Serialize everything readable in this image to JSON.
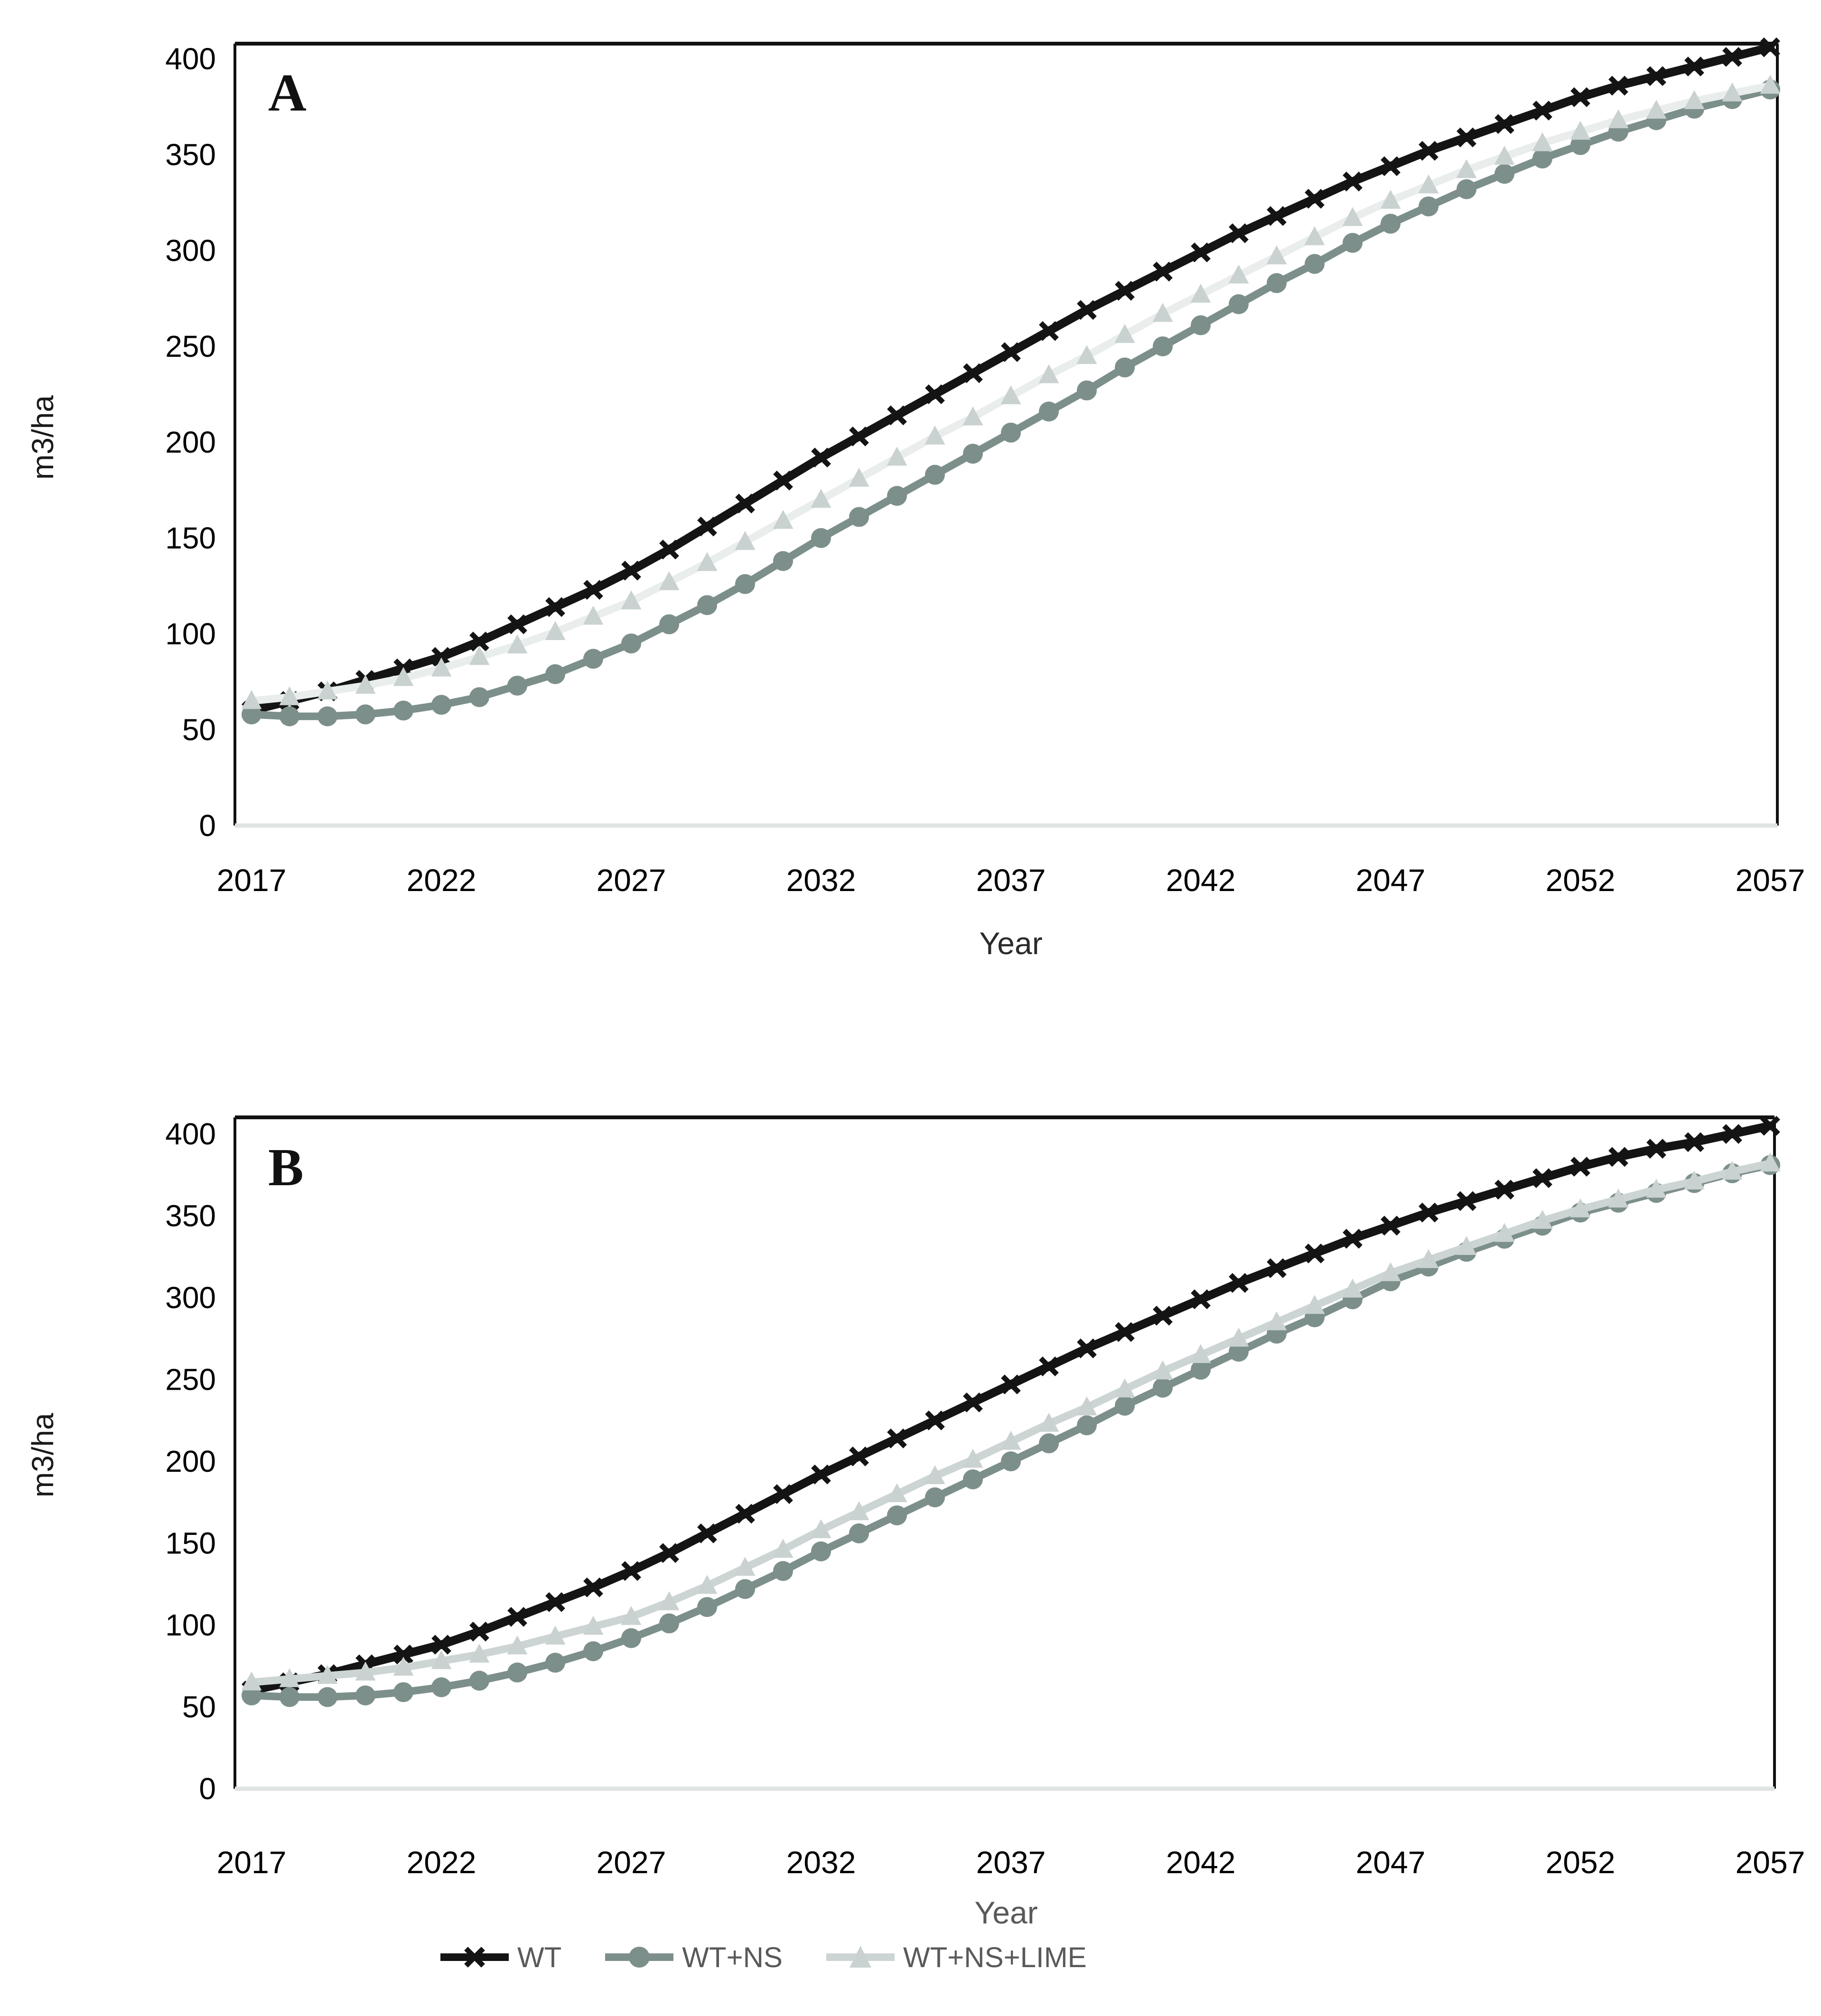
{
  "figure_title": "",
  "chart_data": [
    {
      "type": "line",
      "panel_label": "A",
      "xlabel": "Year",
      "ylabel": "m3/ha",
      "grid": false,
      "legend_position": "below-figure",
      "ylim": [
        0,
        408
      ],
      "xlim": [
        2017,
        2057
      ],
      "yticks": [
        0,
        50,
        100,
        150,
        200,
        250,
        300,
        350,
        400
      ],
      "xticks": [
        2017,
        2022,
        2027,
        2032,
        2037,
        2042,
        2047,
        2052,
        2057
      ],
      "x": [
        2017,
        2018,
        2019,
        2020,
        2021,
        2022,
        2023,
        2024,
        2025,
        2026,
        2027,
        2028,
        2029,
        2030,
        2031,
        2032,
        2033,
        2034,
        2035,
        2036,
        2037,
        2038,
        2039,
        2040,
        2041,
        2042,
        2043,
        2044,
        2045,
        2046,
        2047,
        2048,
        2049,
        2050,
        2051,
        2052,
        2053,
        2054,
        2055,
        2056,
        2057
      ],
      "series": [
        {
          "name": "WT",
          "marker": "x",
          "marker_color": "#141414",
          "line_color": "#141414",
          "line_width": 18,
          "values": [
            60,
            65,
            70,
            76,
            82,
            88,
            96,
            105,
            114,
            123,
            133,
            144,
            156,
            168,
            180,
            192,
            203,
            214,
            225,
            236,
            247,
            258,
            269,
            279,
            289,
            299,
            309,
            318,
            327,
            336,
            344,
            352,
            359,
            366,
            373,
            380,
            386,
            391,
            396,
            401,
            406
          ]
        },
        {
          "name": "WT+NS",
          "marker": "circle",
          "marker_color": "#7c8f8b",
          "line_color": "#7c8f8b",
          "line_width": 16,
          "values": [
            58,
            57,
            57,
            58,
            60,
            63,
            67,
            73,
            79,
            87,
            95,
            105,
            115,
            126,
            138,
            150,
            161,
            172,
            183,
            194,
            205,
            216,
            227,
            239,
            250,
            261,
            272,
            283,
            293,
            304,
            314,
            323,
            332,
            340,
            348,
            355,
            362,
            368,
            374,
            379,
            384
          ]
        },
        {
          "name": "WT+NS+LIME",
          "marker": "triangle",
          "marker_color": "#c9d2d0",
          "line_color": "#e9edec",
          "line_width": 16,
          "values": [
            65,
            67,
            70,
            73,
            77,
            82,
            88,
            94,
            101,
            109,
            117,
            127,
            137,
            148,
            159,
            170,
            181,
            192,
            203,
            213,
            224,
            235,
            245,
            256,
            267,
            277,
            287,
            297,
            307,
            317,
            326,
            334,
            342,
            349,
            356,
            362,
            368,
            373,
            378,
            382,
            386
          ]
        }
      ]
    },
    {
      "type": "line",
      "panel_label": "B",
      "xlabel": "Year",
      "ylabel": "m3/ha",
      "grid": false,
      "legend_position": "below-figure",
      "ylim": [
        0,
        410
      ],
      "xlim": [
        2017,
        2057
      ],
      "yticks": [
        0,
        50,
        100,
        150,
        200,
        250,
        300,
        350,
        400
      ],
      "xticks": [
        2017,
        2022,
        2027,
        2032,
        2037,
        2042,
        2047,
        2052,
        2057
      ],
      "x": [
        2017,
        2018,
        2019,
        2020,
        2021,
        2022,
        2023,
        2024,
        2025,
        2026,
        2027,
        2028,
        2029,
        2030,
        2031,
        2032,
        2033,
        2034,
        2035,
        2036,
        2037,
        2038,
        2039,
        2040,
        2041,
        2042,
        2043,
        2044,
        2045,
        2046,
        2047,
        2048,
        2049,
        2050,
        2051,
        2052,
        2053,
        2054,
        2055,
        2056,
        2057
      ],
      "series": [
        {
          "name": "WT",
          "marker": "x",
          "marker_color": "#141414",
          "line_color": "#141414",
          "line_width": 18,
          "values": [
            60,
            65,
            70,
            76,
            82,
            88,
            96,
            105,
            114,
            123,
            133,
            144,
            156,
            168,
            180,
            192,
            203,
            214,
            225,
            236,
            247,
            258,
            269,
            279,
            289,
            299,
            309,
            318,
            327,
            336,
            344,
            352,
            359,
            366,
            373,
            380,
            386,
            391,
            395,
            400,
            405
          ]
        },
        {
          "name": "WT+NS",
          "marker": "circle",
          "marker_color": "#7c8f8b",
          "line_color": "#7c8f8b",
          "line_width": 16,
          "values": [
            57,
            56,
            56,
            57,
            59,
            62,
            66,
            71,
            77,
            84,
            92,
            101,
            111,
            122,
            133,
            145,
            156,
            167,
            178,
            189,
            200,
            211,
            222,
            234,
            245,
            256,
            267,
            278,
            288,
            299,
            310,
            319,
            328,
            336,
            344,
            352,
            358,
            364,
            370,
            376,
            381
          ]
        },
        {
          "name": "WT+NS+LIME",
          "marker": "triangle",
          "marker_color": "#c9d2d0",
          "line_color": "#ccd5d3",
          "line_width": 16,
          "values": [
            65,
            67,
            69,
            71,
            74,
            78,
            82,
            87,
            93,
            99,
            105,
            114,
            124,
            135,
            146,
            158,
            169,
            180,
            191,
            201,
            212,
            223,
            233,
            244,
            255,
            265,
            275,
            285,
            295,
            305,
            315,
            323,
            331,
            339,
            347,
            354,
            360,
            366,
            371,
            377,
            382
          ]
        }
      ]
    }
  ],
  "legend": {
    "items": [
      {
        "label": "WT",
        "marker": "x",
        "marker_color": "#141414",
        "line_color": "#141414"
      },
      {
        "label": "WT+NS",
        "marker": "circle",
        "marker_color": "#7c8f8b",
        "line_color": "#7c8f8b"
      },
      {
        "label": "WT+NS+LIME",
        "marker": "triangle",
        "marker_color": "#c9d2d0",
        "line_color": "#ccd5d3"
      }
    ]
  },
  "colors": {
    "axis_line_bottom": "#dfe5e3",
    "axis_line_dark": "#111111",
    "tick_label": "#000000",
    "secondary_text": "#595959",
    "background": "#ffffff"
  }
}
